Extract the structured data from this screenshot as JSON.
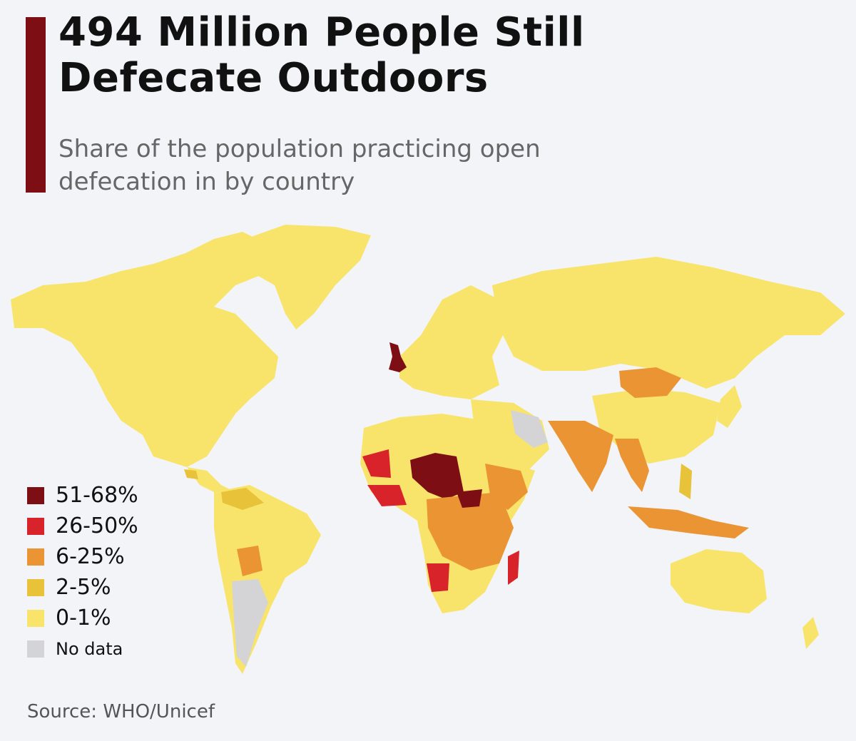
{
  "title": "494 Million People Still Defecate Outdoors",
  "subtitle": "Share of the population practicing open defecation in by country",
  "source": "Source: WHO/Unicef",
  "colors": {
    "accent_bar": "#7d0f14",
    "bg": "#f2f4f8",
    "c51_68": "#7d0f14",
    "c26_50": "#d8232a",
    "c6_25": "#ea9433",
    "c2_5": "#e8c33a",
    "c0_1": "#f8e46a",
    "nodata": "#d4d4d6"
  },
  "legend": [
    {
      "label": "51-68%",
      "color": "#7d0f14"
    },
    {
      "label": "26-50%",
      "color": "#d8232a"
    },
    {
      "label": "6-25%",
      "color": "#ea9433"
    },
    {
      "label": "2-5%",
      "color": "#e8c33a"
    },
    {
      "label": "0-1%",
      "color": "#f8e46a"
    },
    {
      "label": "No data",
      "color": "#d4d4d6"
    }
  ]
}
